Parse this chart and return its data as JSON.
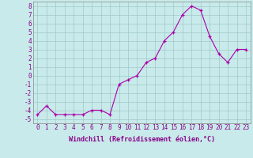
{
  "x": [
    0,
    1,
    2,
    3,
    4,
    5,
    6,
    7,
    8,
    9,
    10,
    11,
    12,
    13,
    14,
    15,
    16,
    17,
    18,
    19,
    20,
    21,
    22,
    23
  ],
  "y": [
    -4.5,
    -3.5,
    -4.5,
    -4.5,
    -4.5,
    -4.5,
    -4.0,
    -4.0,
    -4.5,
    -1.0,
    -0.5,
    0.0,
    1.5,
    2.0,
    4.0,
    5.0,
    7.0,
    8.0,
    7.5,
    4.5,
    2.5,
    1.5,
    3.0,
    3.0
  ],
  "xlabel": "Windchill (Refroidissement éolien,°C)",
  "bg_color": "#c8eaea",
  "grid_color": "#a0c8c8",
  "line_color": "#aa00aa",
  "marker_color": "#aa00aa",
  "ylim": [
    -5.5,
    8.5
  ],
  "xlim": [
    -0.5,
    23.5
  ],
  "yticks": [
    -5,
    -4,
    -3,
    -2,
    -1,
    0,
    1,
    2,
    3,
    4,
    5,
    6,
    7,
    8
  ],
  "xticks": [
    0,
    1,
    2,
    3,
    4,
    5,
    6,
    7,
    8,
    9,
    10,
    11,
    12,
    13,
    14,
    15,
    16,
    17,
    18,
    19,
    20,
    21,
    22,
    23
  ],
  "tick_fontsize": 5.5,
  "xlabel_fontsize": 6.0,
  "xlabel_color": "#880088",
  "tick_color": "#880088"
}
